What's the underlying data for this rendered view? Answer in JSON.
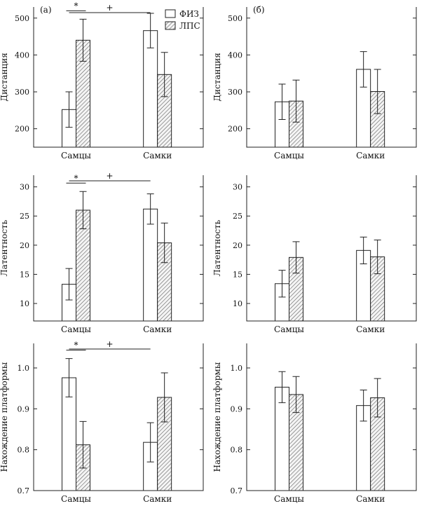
{
  "legend": {
    "items": [
      {
        "label": "ФИЗ",
        "pattern": "open"
      },
      {
        "label": "ЛПС",
        "pattern": "hatched"
      }
    ]
  },
  "chart_data": [
    {
      "type": "bar",
      "panel_label": "(а)",
      "ylabel": "Дистанция",
      "categories": [
        "Самцы",
        "Самки"
      ],
      "ylim": [
        150,
        530
      ],
      "yticks": [
        200,
        300,
        400,
        500
      ],
      "series": [
        {
          "name": "ФИЗ",
          "values": [
            252,
            466
          ],
          "errors": [
            48,
            47
          ]
        },
        {
          "name": "ЛПС",
          "values": [
            440,
            347
          ],
          "errors": [
            57,
            60
          ]
        }
      ],
      "annotations": [
        {
          "text": "+",
          "kind": "between-groups"
        },
        {
          "text": "*",
          "kind": "within-group",
          "group": 0
        }
      ]
    },
    {
      "type": "bar",
      "panel_label": "(б)",
      "ylabel": "Дистанция",
      "categories": [
        "Самцы",
        "Самки"
      ],
      "ylim": [
        150,
        530
      ],
      "yticks": [
        200,
        300,
        400,
        500
      ],
      "series": [
        {
          "name": "ФИЗ",
          "values": [
            273,
            361
          ],
          "errors": [
            48,
            48
          ]
        },
        {
          "name": "ЛПС",
          "values": [
            275,
            301
          ],
          "errors": [
            57,
            60
          ]
        }
      ],
      "annotations": []
    },
    {
      "type": "bar",
      "panel_label": "",
      "ylabel": "Латентность",
      "categories": [
        "Самцы",
        "Самки"
      ],
      "ylim": [
        7,
        32
      ],
      "yticks": [
        10,
        15,
        20,
        25,
        30
      ],
      "series": [
        {
          "name": "ФИЗ",
          "values": [
            13.3,
            26.2
          ],
          "errors": [
            2.7,
            2.6
          ]
        },
        {
          "name": "ЛПС",
          "values": [
            26.0,
            20.4
          ],
          "errors": [
            3.2,
            3.4
          ]
        }
      ],
      "annotations": [
        {
          "text": "+",
          "kind": "between-groups"
        },
        {
          "text": "*",
          "kind": "within-group",
          "group": 0
        }
      ]
    },
    {
      "type": "bar",
      "panel_label": "",
      "ylabel": "Латентность",
      "categories": [
        "Самцы",
        "Самки"
      ],
      "ylim": [
        7,
        32
      ],
      "yticks": [
        10,
        15,
        20,
        25,
        30
      ],
      "series": [
        {
          "name": "ФИЗ",
          "values": [
            13.4,
            19.1
          ],
          "errors": [
            2.3,
            2.3
          ]
        },
        {
          "name": "ЛПС",
          "values": [
            17.9,
            18.0
          ],
          "errors": [
            2.7,
            2.9
          ]
        }
      ],
      "annotations": []
    },
    {
      "type": "bar",
      "panel_label": "",
      "ylabel": "Нахождение платформы",
      "categories": [
        "Самцы",
        "Самки"
      ],
      "ylim": [
        0.7,
        1.06
      ],
      "yticks": [
        0.7,
        0.8,
        0.9,
        1.0
      ],
      "tick_labels": [
        "0.7",
        "0.8",
        "0.9",
        "1.0"
      ],
      "series": [
        {
          "name": "ФИЗ",
          "values": [
            0.976,
            0.818
          ],
          "errors": [
            0.047,
            0.048
          ]
        },
        {
          "name": "ЛПС",
          "values": [
            0.812,
            0.928
          ],
          "errors": [
            0.057,
            0.06
          ]
        }
      ],
      "annotations": [
        {
          "text": "+",
          "kind": "between-groups"
        },
        {
          "text": "*",
          "kind": "within-group",
          "group": 0
        }
      ]
    },
    {
      "type": "bar",
      "panel_label": "",
      "ylabel": "Нахождение платформы",
      "categories": [
        "Самцы",
        "Самки"
      ],
      "ylim": [
        0.7,
        1.06
      ],
      "yticks": [
        0.7,
        0.8,
        0.9,
        1.0
      ],
      "tick_labels": [
        "0.7",
        "0.8",
        "0.9",
        "1.0"
      ],
      "series": [
        {
          "name": "ФИЗ",
          "values": [
            0.953,
            0.908
          ],
          "errors": [
            0.038,
            0.038
          ]
        },
        {
          "name": "ЛПС",
          "values": [
            0.935,
            0.927
          ],
          "errors": [
            0.044,
            0.047
          ]
        }
      ],
      "annotations": []
    }
  ]
}
